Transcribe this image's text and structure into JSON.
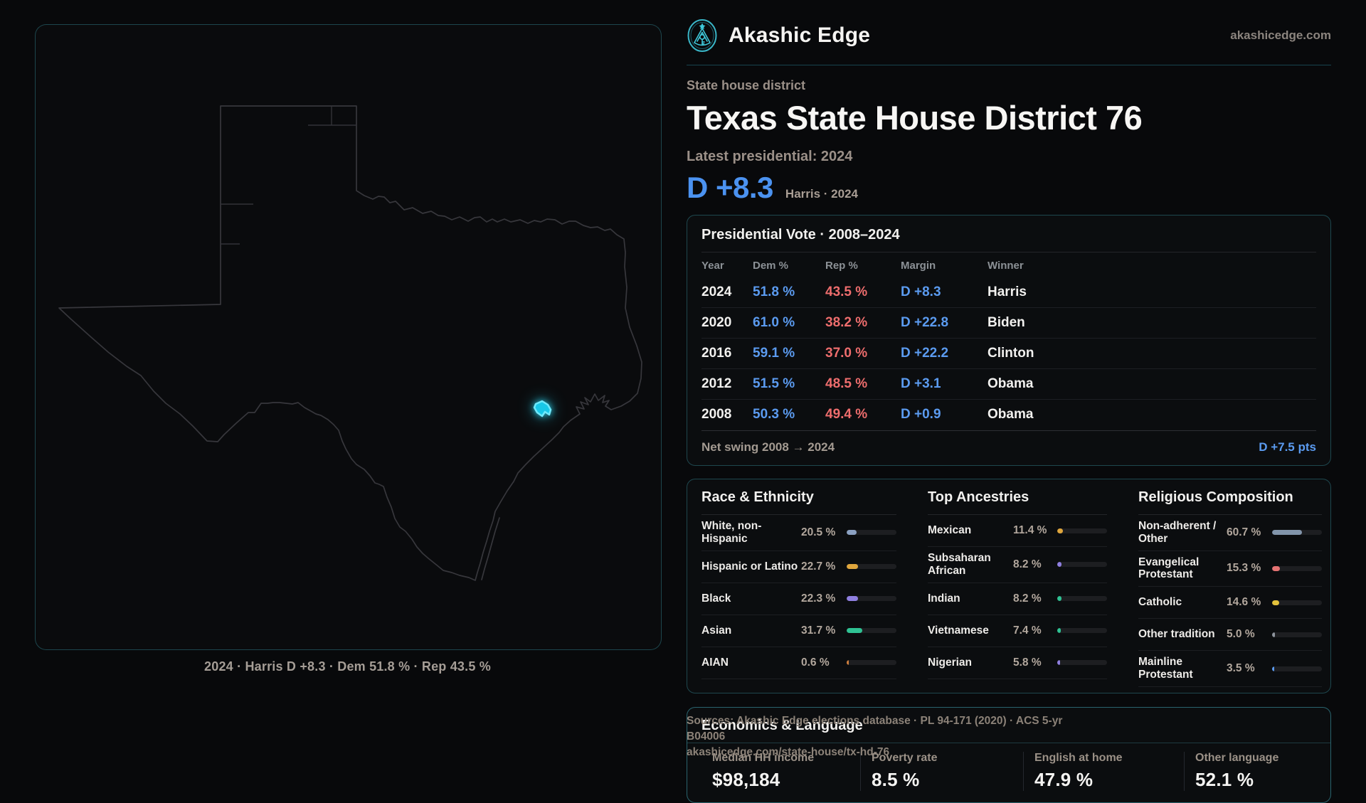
{
  "brand": {
    "name": "Akashic Edge",
    "domain": "akashicedge.com",
    "logo_icon": "akashic-emblem-icon"
  },
  "map": {
    "caption": "2024 · Harris D +8.3 · Dem 51.8 % · Rep 43.5 %",
    "highlight_color": "#18c8e8"
  },
  "header": {
    "eyebrow": "State house district",
    "title": "Texas State House District 76",
    "latest_label": "Latest presidential: 2024",
    "margin_value": "D +8.3",
    "margin_note": "Harris · 2024"
  },
  "presidential": {
    "title": "Presidential Vote · 2008–2024",
    "columns": [
      "Year",
      "Dem %",
      "Rep %",
      "Margin",
      "Winner"
    ],
    "rows": [
      {
        "year": "2024",
        "dem": "51.8 %",
        "rep": "43.5 %",
        "margin": "D +8.3",
        "winner": "Harris"
      },
      {
        "year": "2020",
        "dem": "61.0 %",
        "rep": "38.2 %",
        "margin": "D +22.8",
        "winner": "Biden"
      },
      {
        "year": "2016",
        "dem": "59.1 %",
        "rep": "37.0 %",
        "margin": "D +22.2",
        "winner": "Clinton"
      },
      {
        "year": "2012",
        "dem": "51.5 %",
        "rep": "48.5 %",
        "margin": "D +3.1",
        "winner": "Obama"
      },
      {
        "year": "2008",
        "dem": "50.3 %",
        "rep": "49.4 %",
        "margin": "D +0.9",
        "winner": "Obama"
      }
    ],
    "footer": {
      "label": "Net swing 2008 → 2024",
      "value": "D +7.5 pts"
    },
    "colors": {
      "dem": "#5b9bf0",
      "rep": "#ee6d6d",
      "margin": "#5b9bf0"
    }
  },
  "demographics": {
    "panels": [
      {
        "title": "Race & Ethnicity",
        "rows": [
          {
            "label": "White, non-Hispanic",
            "value": "20.5 %",
            "pct": 20.5,
            "color": "#8ba1c2"
          },
          {
            "label": "Hispanic or Latino",
            "value": "22.7 %",
            "pct": 22.7,
            "color": "#dfa63d"
          },
          {
            "label": "Black",
            "value": "22.3 %",
            "pct": 22.3,
            "color": "#8f7fe0"
          },
          {
            "label": "Asian",
            "value": "31.7 %",
            "pct": 31.7,
            "color": "#2fc293"
          },
          {
            "label": "AIAN",
            "value": "0.6 %",
            "pct": 0.6,
            "color": "#cf7f3e"
          }
        ]
      },
      {
        "title": "Top Ancestries",
        "rows": [
          {
            "label": "Mexican",
            "value": "11.4 %",
            "pct": 11.4,
            "color": "#dfa63d"
          },
          {
            "label": "Subsaharan African",
            "value": "8.2 %",
            "pct": 8.2,
            "color": "#8f7fe0"
          },
          {
            "label": "Indian",
            "value": "8.2 %",
            "pct": 8.2,
            "color": "#2fc293"
          },
          {
            "label": "Vietnamese",
            "value": "7.4 %",
            "pct": 7.4,
            "color": "#2fc293"
          },
          {
            "label": "Nigerian",
            "value": "5.8 %",
            "pct": 5.8,
            "color": "#8f7fe0"
          }
        ]
      },
      {
        "title": "Religious Composition",
        "rows": [
          {
            "label": "Non-adherent / Other",
            "value": "60.7 %",
            "pct": 60.7,
            "color": "#8295ab"
          },
          {
            "label": "Evangelical Protestant",
            "value": "15.3 %",
            "pct": 15.3,
            "color": "#e57373"
          },
          {
            "label": "Catholic",
            "value": "14.6 %",
            "pct": 14.6,
            "color": "#e3c23c"
          },
          {
            "label": "Other tradition",
            "value": "5.0 %",
            "pct": 5.0,
            "color": "#8d939c"
          },
          {
            "label": "Mainline Protestant",
            "value": "3.5 %",
            "pct": 3.5,
            "color": "#5b9bf0"
          }
        ]
      }
    ]
  },
  "economics": {
    "title": "Economics & Language",
    "stats": [
      {
        "label": "Median HH income",
        "value": "$98,184"
      },
      {
        "label": "Poverty rate",
        "value": "8.5 %"
      },
      {
        "label": "English at home",
        "value": "47.9 %"
      },
      {
        "label": "Other language",
        "value": "52.1 %"
      }
    ]
  },
  "source": {
    "line1": "Sources: Akashic Edge elections database · PL 94-171 (2020) · ACS 5-yr B04006",
    "line2": "akashicedge.com/state-house/tx-hd-76"
  }
}
